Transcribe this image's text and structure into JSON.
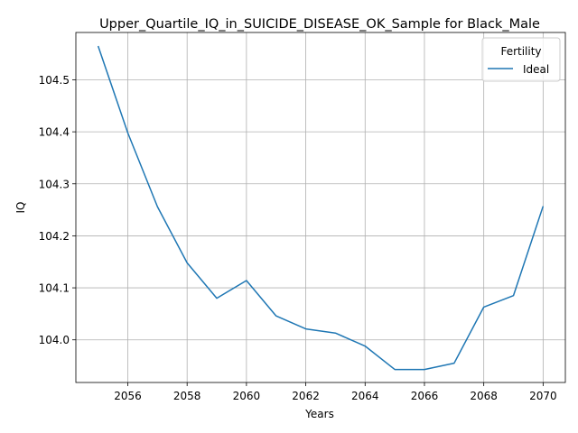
{
  "chart_data": {
    "type": "line",
    "title": "Upper_Quartile_IQ_in_SUICIDE_DISEASE_OK_Sample for Black_Male",
    "xlabel": "Years",
    "ylabel": "IQ",
    "xlim": [
      2054.25,
      2070.75
    ],
    "ylim": [
      103.918,
      104.591
    ],
    "xticks": [
      2056,
      2058,
      2060,
      2062,
      2064,
      2066,
      2068,
      2070
    ],
    "yticks": [
      104.0,
      104.1,
      104.2,
      104.3,
      104.4,
      104.5
    ],
    "grid": true,
    "legend": {
      "title": "Fertility",
      "position": "top-right"
    },
    "series": [
      {
        "name": "Ideal",
        "color": "#1f77b4",
        "x": [
          2055,
          2056,
          2057,
          2058,
          2059,
          2060,
          2061,
          2062,
          2063,
          2064,
          2065,
          2066,
          2067,
          2068,
          2069,
          2070
        ],
        "y": [
          104.565,
          104.398,
          104.256,
          104.148,
          104.08,
          104.114,
          104.046,
          104.021,
          104.013,
          103.988,
          103.943,
          103.943,
          103.955,
          104.063,
          104.085,
          104.257
        ]
      }
    ]
  }
}
